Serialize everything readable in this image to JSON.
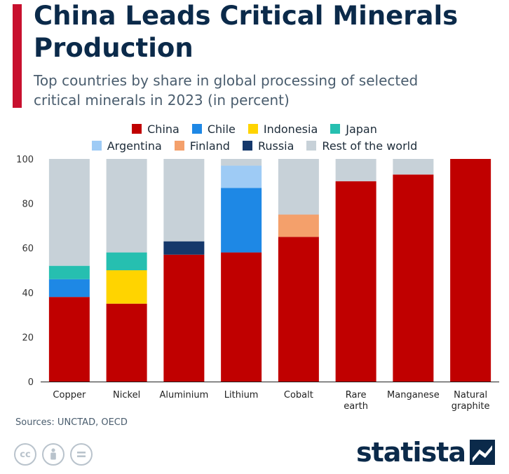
{
  "header": {
    "title": "China Leads Critical Minerals Production",
    "subtitle": "Top countries by share in global processing of selected critical minerals in 2023 (in percent)"
  },
  "colors": {
    "accent": "#c8102e",
    "China": "#c00000",
    "Chile": "#1e88e5",
    "Indonesia": "#ffd400",
    "Japan": "#26bfb0",
    "Argentina": "#9ecbf5",
    "Finland": "#f4a06b",
    "Russia": "#15386b",
    "Rest of the world": "#c7d1d8"
  },
  "footer": {
    "sources": "Sources: UNCTAD, OECD",
    "cc_icons": [
      "cc-icon",
      "attribution-icon",
      "no-derivatives-icon"
    ],
    "logo": "statista"
  },
  "chart_data": {
    "type": "bar",
    "stacked": true,
    "title": "China Leads Critical Minerals Production",
    "subtitle": "Top countries by share in global processing of selected critical minerals in 2023 (in percent)",
    "categories": [
      "Copper",
      "Nickel",
      "Aluminium",
      "Lithium",
      "Cobalt",
      "Rare earth",
      "Manganese",
      "Natural graphite"
    ],
    "category_lines": [
      [
        "Copper"
      ],
      [
        "Nickel"
      ],
      [
        "Aluminium"
      ],
      [
        "Lithium"
      ],
      [
        "Cobalt"
      ],
      [
        "Rare",
        "earth"
      ],
      [
        "Manganese"
      ],
      [
        "Natural",
        "graphite"
      ]
    ],
    "ylim": [
      0,
      100
    ],
    "yticks": [
      0,
      20,
      40,
      60,
      80,
      100
    ],
    "ylabel": "",
    "xlabel": "",
    "legend_rows": [
      [
        "China",
        "Chile",
        "Indonesia",
        "Japan"
      ],
      [
        "Argentina",
        "Finland",
        "Russia",
        "Rest of the world"
      ]
    ],
    "series": [
      {
        "name": "China",
        "values": [
          38,
          35,
          57,
          58,
          65,
          90,
          93,
          100
        ]
      },
      {
        "name": "Chile",
        "values": [
          8,
          0,
          0,
          29,
          0,
          0,
          0,
          0
        ]
      },
      {
        "name": "Indonesia",
        "values": [
          0,
          15,
          0,
          0,
          0,
          0,
          0,
          0
        ]
      },
      {
        "name": "Japan",
        "values": [
          6,
          8,
          0,
          0,
          0,
          0,
          0,
          0
        ]
      },
      {
        "name": "Argentina",
        "values": [
          0,
          0,
          0,
          10,
          0,
          0,
          0,
          0
        ]
      },
      {
        "name": "Finland",
        "values": [
          0,
          0,
          0,
          0,
          10,
          0,
          0,
          0
        ]
      },
      {
        "name": "Russia",
        "values": [
          0,
          0,
          6,
          0,
          0,
          0,
          0,
          0
        ]
      },
      {
        "name": "Rest of the world",
        "values": [
          48,
          42,
          37,
          3,
          25,
          10,
          7,
          0
        ]
      }
    ]
  }
}
